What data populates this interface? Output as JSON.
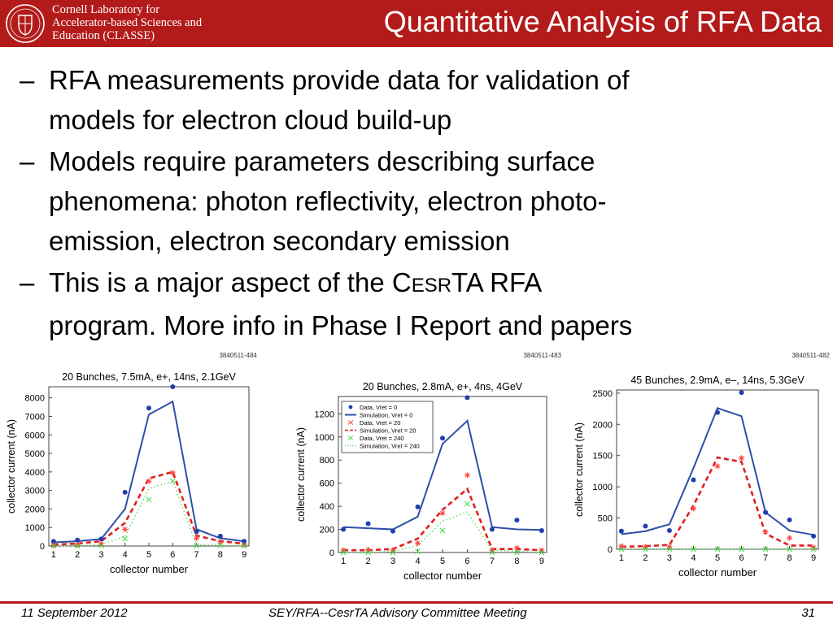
{
  "header": {
    "institution_lines": [
      "Cornell Laboratory for",
      "Accelerator-based Sciences and",
      "Education (CLASSE)"
    ],
    "logo_icon": "cornell-seal-icon",
    "title": "Quantitative Analysis of RFA Data",
    "bar_color": "#b31b1b"
  },
  "bullets": [
    {
      "dash": "–",
      "line1": "RFA measurements provide data for validation of",
      "line2": "models for electron cloud build-up"
    },
    {
      "dash": "–",
      "line1": "Models require parameters describing surface",
      "line2": "phenomena: photon reflectivity, electron photo-",
      "line3": "emission, electron secondary emission"
    },
    {
      "dash": "–",
      "line1_pre": "This is a major aspect of the C",
      "line1_sc": "ESR",
      "line1_post": "TA RFA",
      "line2": "program.  More info in Phase I Report and papers"
    }
  ],
  "chart_data": [
    {
      "type": "line",
      "id_label": "3840511-484",
      "title": "20 Bunches, 7.5mA, e+, 14ns, 2.1GeV",
      "xlabel": "collector number",
      "ylabel": "collector current (nA)",
      "x": [
        1,
        2,
        3,
        4,
        5,
        6,
        7,
        8,
        9
      ],
      "xlim": [
        0.8,
        9.2
      ],
      "ylim": [
        0,
        8600
      ],
      "yticks": [
        0,
        1000,
        2000,
        3000,
        4000,
        5000,
        6000,
        7000,
        8000
      ],
      "legend": null,
      "series": [
        {
          "role": "data_high",
          "values": [
            250,
            320,
            380,
            2900,
            7450,
            8600,
            780,
            530,
            250
          ]
        },
        {
          "role": "sim_high",
          "values": [
            200,
            260,
            380,
            2000,
            7100,
            7800,
            900,
            420,
            250
          ]
        },
        {
          "role": "data_mid",
          "values": [
            40,
            60,
            120,
            900,
            3500,
            3950,
            420,
            220,
            60
          ]
        },
        {
          "role": "sim_mid",
          "values": [
            80,
            130,
            260,
            1250,
            3650,
            4000,
            560,
            260,
            120
          ]
        },
        {
          "role": "data_low",
          "values": [
            0,
            0,
            20,
            400,
            2500,
            3500,
            0,
            30,
            0
          ]
        },
        {
          "role": "sim_low",
          "values": [
            0,
            20,
            60,
            520,
            3100,
            3500,
            60,
            40,
            0
          ]
        }
      ]
    },
    {
      "type": "line",
      "id_label": "3840511-483",
      "title": "20 Bunches, 2.8mA, e+, 4ns, 4GeV",
      "xlabel": "collector number",
      "ylabel": "collector current (nA)",
      "x": [
        1,
        2,
        3,
        4,
        5,
        6,
        7,
        8,
        9
      ],
      "xlim": [
        0.8,
        9.2
      ],
      "ylim": [
        0,
        1350
      ],
      "yticks": [
        0,
        200,
        400,
        600,
        800,
        1000,
        1200
      ],
      "legend": [
        "Data, Vret = 0",
        "Simulation, Vret = 0",
        "Data, Vret = 20",
        "Simulation, Vret = 20",
        "Data, Vret = 240",
        "Simulation, Vret = 240"
      ],
      "series": [
        {
          "role": "data_high",
          "values": [
            200,
            250,
            185,
            395,
            990,
            1340,
            200,
            280,
            190
          ]
        },
        {
          "role": "sim_high",
          "values": [
            220,
            210,
            200,
            310,
            940,
            1140,
            220,
            200,
            195
          ]
        },
        {
          "role": "data_mid",
          "values": [
            20,
            25,
            20,
            80,
            340,
            670,
            20,
            40,
            20
          ]
        },
        {
          "role": "sim_mid",
          "values": [
            20,
            20,
            30,
            120,
            370,
            550,
            30,
            30,
            20
          ]
        },
        {
          "role": "data_low",
          "values": [
            0,
            0,
            0,
            10,
            190,
            420,
            0,
            0,
            0
          ]
        },
        {
          "role": "sim_low",
          "values": [
            0,
            0,
            10,
            60,
            270,
            350,
            20,
            10,
            0
          ]
        }
      ]
    },
    {
      "type": "line",
      "id_label": "3840511-482",
      "title": "45 Bunches, 2.9mA, e–, 14ns, 5.3GeV",
      "xlabel": "collector number",
      "ylabel": "collector current (nA)",
      "x": [
        1,
        2,
        3,
        4,
        5,
        6,
        7,
        8,
        9
      ],
      "xlim": [
        0.8,
        9.2
      ],
      "ylim": [
        0,
        2550
      ],
      "yticks": [
        0,
        500,
        1000,
        1500,
        2000,
        2500
      ],
      "legend": null,
      "series": [
        {
          "role": "data_high",
          "values": [
            290,
            370,
            300,
            1110,
            2190,
            2510,
            590,
            470,
            210
          ]
        },
        {
          "role": "sim_high",
          "values": [
            240,
            290,
            400,
            1300,
            2260,
            2130,
            590,
            300,
            230
          ]
        },
        {
          "role": "data_mid",
          "values": [
            50,
            40,
            40,
            650,
            1330,
            1460,
            280,
            180,
            30
          ]
        },
        {
          "role": "sim_mid",
          "values": [
            40,
            50,
            70,
            700,
            1470,
            1400,
            250,
            60,
            60
          ]
        },
        {
          "role": "data_low",
          "values": [
            0,
            0,
            0,
            0,
            0,
            0,
            0,
            0,
            0
          ]
        },
        {
          "role": "sim_low",
          "values": [
            0,
            0,
            0,
            0,
            0,
            0,
            0,
            0,
            0
          ]
        }
      ]
    }
  ],
  "series_style": {
    "data_high": {
      "color": "#1f3fb0",
      "marker": "dot"
    },
    "sim_high": {
      "color": "#2f4fa8",
      "line": "solid"
    },
    "data_mid": {
      "color": "#ff4040",
      "marker": "star"
    },
    "sim_mid": {
      "color": "#e02020",
      "line": "dashed"
    },
    "data_low": {
      "color": "#44dd44",
      "marker": "x"
    },
    "sim_low": {
      "color": "#55dd55",
      "line": "dotted"
    }
  },
  "footer": {
    "date": "11 September 2012",
    "meeting": "SEY/RFA--CesrTA Advisory Committee Meeting",
    "page": "31"
  }
}
